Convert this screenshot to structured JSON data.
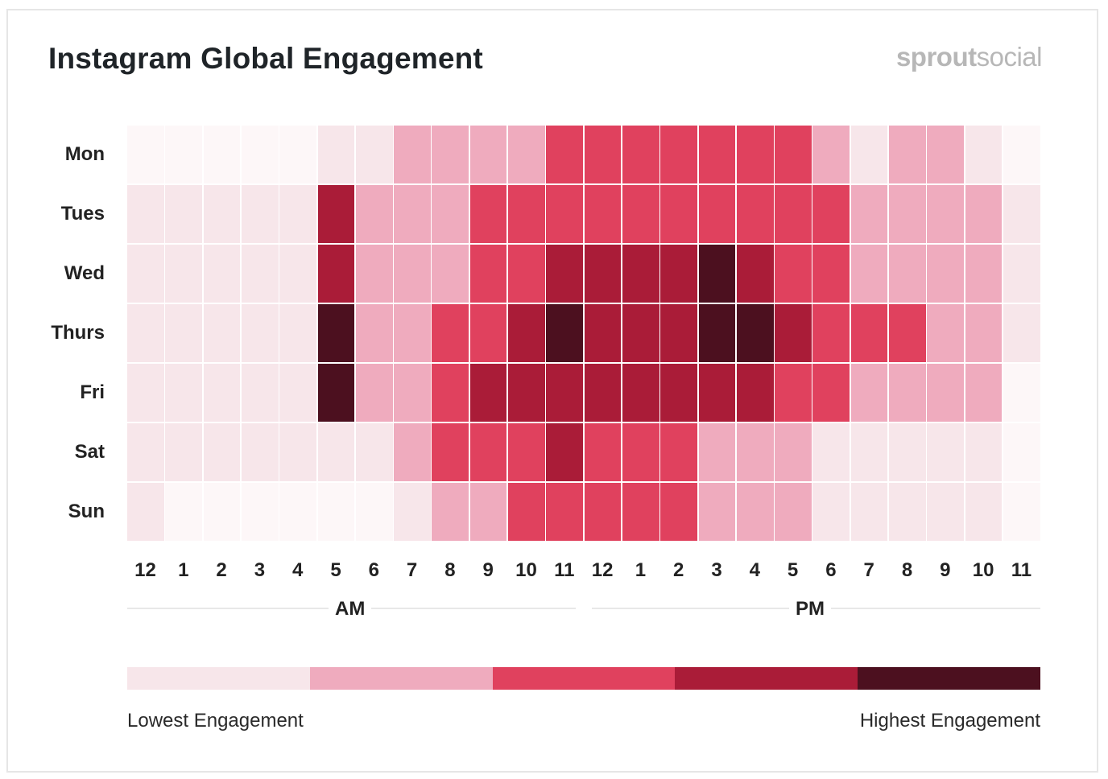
{
  "title": "Instagram Global Engagement",
  "brand": {
    "part1": "sprout",
    "part2": "social"
  },
  "chart_data": {
    "type": "heatmap",
    "title": "Instagram Global Engagement",
    "rows": [
      "Mon",
      "Tues",
      "Wed",
      "Thurs",
      "Fri",
      "Sat",
      "Sun"
    ],
    "columns": [
      "12",
      "1",
      "2",
      "3",
      "4",
      "5",
      "6",
      "7",
      "8",
      "9",
      "10",
      "11",
      "12",
      "1",
      "2",
      "3",
      "4",
      "5",
      "6",
      "7",
      "8",
      "9",
      "10",
      "11"
    ],
    "column_groups": [
      {
        "label": "AM",
        "from": 0,
        "to": 11
      },
      {
        "label": "PM",
        "from": 12,
        "to": 23
      }
    ],
    "scale": {
      "levels": 5,
      "colors": [
        "#fdf7f8",
        "#f7e6ea",
        "#efabbe",
        "#e0415e",
        "#aa1c38",
        "#4c101f"
      ],
      "low_label": "Lowest Engagement",
      "high_label": "Highest Engagement"
    },
    "values": [
      [
        0,
        0,
        0,
        0,
        0,
        1,
        1,
        2,
        2,
        2,
        2,
        3,
        3,
        3,
        3,
        3,
        3,
        3,
        2,
        1,
        2,
        2,
        1,
        0
      ],
      [
        1,
        1,
        1,
        1,
        1,
        4,
        2,
        2,
        2,
        3,
        3,
        3,
        3,
        3,
        3,
        3,
        3,
        3,
        3,
        2,
        2,
        2,
        2,
        1
      ],
      [
        1,
        1,
        1,
        1,
        1,
        4,
        2,
        2,
        2,
        3,
        3,
        4,
        4,
        4,
        4,
        5,
        4,
        3,
        3,
        2,
        2,
        2,
        2,
        1
      ],
      [
        1,
        1,
        1,
        1,
        1,
        5,
        2,
        2,
        3,
        3,
        4,
        5,
        4,
        4,
        4,
        5,
        5,
        4,
        3,
        3,
        3,
        2,
        2,
        1
      ],
      [
        1,
        1,
        1,
        1,
        1,
        5,
        2,
        2,
        3,
        4,
        4,
        4,
        4,
        4,
        4,
        4,
        4,
        3,
        3,
        2,
        2,
        2,
        2,
        0
      ],
      [
        1,
        1,
        1,
        1,
        1,
        1,
        1,
        2,
        3,
        3,
        3,
        4,
        3,
        3,
        3,
        2,
        2,
        2,
        1,
        1,
        1,
        1,
        1,
        0
      ],
      [
        1,
        0,
        0,
        0,
        0,
        0,
        0,
        1,
        2,
        2,
        3,
        3,
        3,
        3,
        3,
        2,
        2,
        2,
        1,
        1,
        1,
        1,
        1,
        0
      ]
    ]
  }
}
